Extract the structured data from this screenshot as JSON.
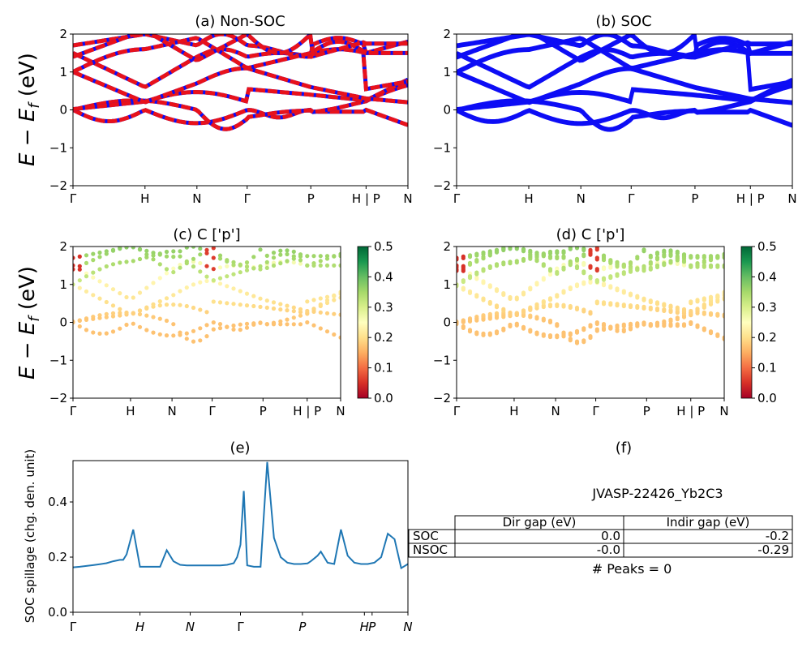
{
  "figure_id": "JVASP-22426_Yb2C3",
  "kpath_labels": [
    "Γ",
    "H",
    "N",
    "Γ",
    "P",
    "H | P",
    "N"
  ],
  "kpath_labels_e": [
    "Γ",
    "H",
    "N",
    "Γ",
    "P",
    "H",
    "P",
    "N"
  ],
  "ylabel_band": "E − E_f (eV)",
  "colors": {
    "red": "#e8121b",
    "blue": "#0d0df5",
    "line": "#1f77b4"
  },
  "chart_data": [
    {
      "id": "a",
      "type": "line",
      "title": "(a) Non-SOC",
      "ylabel": "E − E_f (eV)",
      "ylim": [
        -2,
        2
      ],
      "yticks": [
        "−2",
        "−1",
        "0",
        "1",
        "2"
      ],
      "xticks": [
        "Γ",
        "H",
        "N",
        "Γ",
        "P",
        "H | P",
        "N"
      ],
      "series": [
        {
          "style": "red dashed over blue",
          "bands": "see script"
        }
      ]
    },
    {
      "id": "b",
      "type": "line",
      "title": "(b) SOC",
      "ylim": [
        -2,
        2
      ],
      "yticks": [
        "−2",
        "−1",
        "0",
        "1",
        "2"
      ],
      "xticks": [
        "Γ",
        "H",
        "N",
        "Γ",
        "P",
        "H | P",
        "N"
      ],
      "series": [
        {
          "style": "blue",
          "bands": "see script"
        }
      ]
    },
    {
      "id": "c",
      "type": "scatter",
      "title": "(c)  C ['p']",
      "ylabel": "E − E_f (eV)",
      "ylim": [
        -2,
        2
      ],
      "yticks": [
        "−2",
        "−1",
        "0",
        "1",
        "2"
      ],
      "xticks": [
        "Γ",
        "H",
        "N",
        "Γ",
        "P",
        "H | P",
        "N"
      ],
      "colorbar": {
        "cmap": "RdYlGn",
        "range": [
          0,
          0.5
        ],
        "ticks": [
          "0.0",
          "0.1",
          "0.2",
          "0.3",
          "0.4",
          "0.5"
        ]
      }
    },
    {
      "id": "d",
      "type": "scatter",
      "title": "(d) C ['p']",
      "ylim": [
        -2,
        2
      ],
      "yticks": [
        "−2",
        "−1",
        "0",
        "1",
        "2"
      ],
      "xticks": [
        "Γ",
        "H",
        "N",
        "Γ",
        "P",
        "H | P",
        "N"
      ],
      "colorbar": {
        "cmap": "RdYlGn",
        "range": [
          0,
          0.5
        ],
        "ticks": [
          "0.0",
          "0.1",
          "0.2",
          "0.3",
          "0.4",
          "0.5"
        ]
      }
    },
    {
      "id": "e",
      "type": "line",
      "title": "(e)",
      "ylabel": "SOC spillage (chg. den. unit)",
      "ylim": [
        0,
        0.55
      ],
      "yticks": [
        "0.0",
        "0.2",
        "0.4"
      ],
      "xticks": [
        "Γ",
        "H",
        "N",
        "Γ",
        "P",
        "H",
        "P",
        "N"
      ],
      "x": [
        0,
        2,
        4,
        6,
        8,
        10,
        12,
        14,
        15,
        16,
        18,
        20,
        22,
        24,
        26,
        28,
        30,
        32,
        34,
        36,
        38,
        40,
        42,
        44,
        46,
        48,
        49,
        50,
        51,
        52,
        54,
        56,
        58,
        60,
        62,
        64,
        66,
        68,
        70,
        71,
        72,
        73,
        74,
        76,
        78,
        80,
        82,
        84,
        86,
        88,
        90,
        92,
        94,
        96,
        98,
        100
      ],
      "values": [
        0.163,
        0.165,
        0.168,
        0.171,
        0.174,
        0.178,
        0.185,
        0.19,
        0.19,
        0.21,
        0.3,
        0.165,
        0.165,
        0.165,
        0.165,
        0.225,
        0.185,
        0.172,
        0.17,
        0.17,
        0.17,
        0.17,
        0.17,
        0.17,
        0.172,
        0.178,
        0.2,
        0.245,
        0.44,
        0.17,
        0.165,
        0.165,
        0.545,
        0.27,
        0.2,
        0.18,
        0.175,
        0.175,
        0.177,
        0.185,
        0.195,
        0.205,
        0.22,
        0.18,
        0.175,
        0.3,
        0.205,
        0.18,
        0.175,
        0.175,
        0.18,
        0.2,
        0.285,
        0.265,
        0.16,
        0.175
      ]
    }
  ],
  "panel_f": {
    "title": "(f)",
    "material": "JVASP-22426_Yb2C3",
    "table": {
      "headers": [
        "",
        "Dir gap (eV)",
        "Indir gap (eV)"
      ],
      "rows": [
        [
          "SOC",
          "0.0",
          "-0.2"
        ],
        [
          "NSOC",
          "-0.0",
          "-0.29"
        ]
      ]
    },
    "peaks": "# Peaks = 0"
  }
}
